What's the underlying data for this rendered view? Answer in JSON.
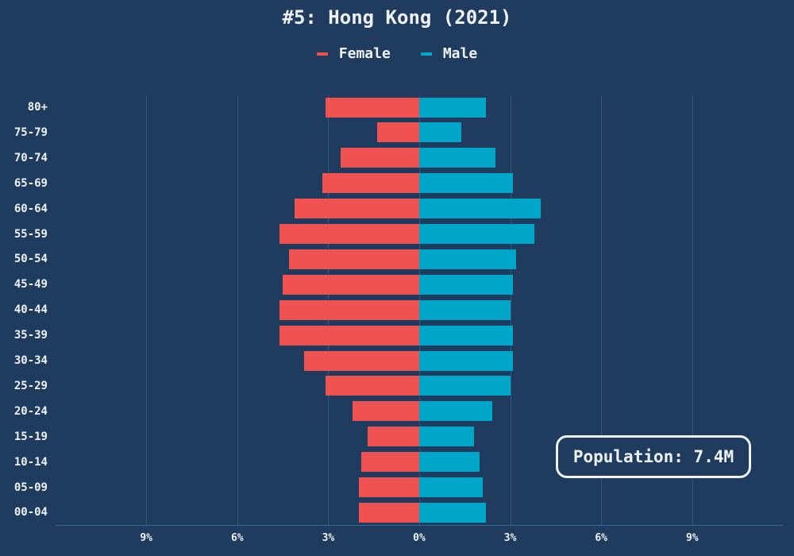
{
  "title": "#5: Hong Kong (2021)",
  "legend": [
    {
      "label": "Female",
      "color": "#f05252"
    },
    {
      "label": "Male",
      "color": "#00a6c8"
    }
  ],
  "annotation": "Population: 7.4M",
  "x_ticks": [
    "9%",
    "6%",
    "3%",
    "0%",
    "3%",
    "6%",
    "9%"
  ],
  "chart_data": {
    "type": "bar",
    "orientation": "horizontal",
    "subtype": "population-pyramid",
    "title": "#5: Hong Kong (2021)",
    "xlabel": "",
    "ylabel": "",
    "x_tick_labels": [
      "9%",
      "6%",
      "3%",
      "0%",
      "3%",
      "6%",
      "9%"
    ],
    "xlim": [
      -12,
      12
    ],
    "grid": "vertical",
    "legend_position": "top",
    "annotation": "Population: 7.4M",
    "categories": [
      "80+",
      "75-79",
      "70-74",
      "65-69",
      "60-64",
      "55-59",
      "50-54",
      "45-49",
      "40-44",
      "35-39",
      "30-34",
      "25-29",
      "20-24",
      "15-19",
      "10-14",
      "05-09",
      "00-04"
    ],
    "series": [
      {
        "name": "Female",
        "color": "#f05252",
        "side": "left",
        "values": [
          3.1,
          1.4,
          2.6,
          3.2,
          4.1,
          4.6,
          4.3,
          4.5,
          4.6,
          4.6,
          3.8,
          3.1,
          2.2,
          1.7,
          1.9,
          2.0,
          2.0
        ]
      },
      {
        "name": "Male",
        "color": "#00a6c8",
        "side": "right",
        "values": [
          2.2,
          1.4,
          2.5,
          3.1,
          4.0,
          3.8,
          3.2,
          3.1,
          3.0,
          3.1,
          3.1,
          3.0,
          2.4,
          1.8,
          2.0,
          2.1,
          2.2
        ]
      }
    ]
  }
}
